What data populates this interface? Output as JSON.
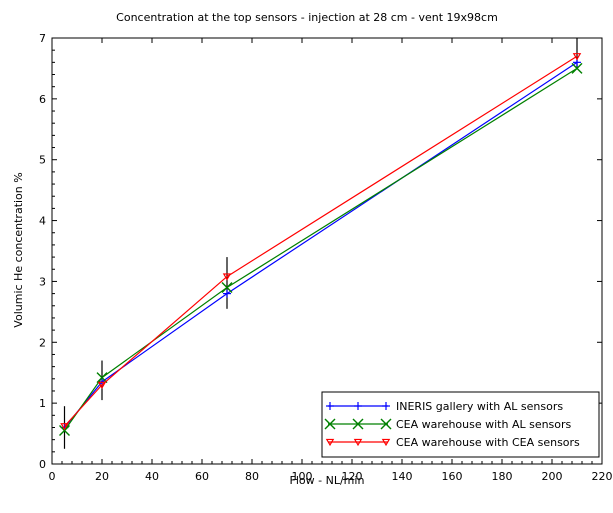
{
  "chart_data": {
    "type": "line",
    "title": "Concentration at the top sensors - injection at 28 cm - vent 19x98cm",
    "xlabel": "Flow - NL/min",
    "ylabel": "Volumic He concentration %",
    "xlim": [
      0,
      220
    ],
    "ylim": [
      0,
      7
    ],
    "xticks": [
      0,
      20,
      40,
      60,
      80,
      100,
      120,
      140,
      160,
      180,
      200,
      220
    ],
    "yticks": [
      0,
      1,
      2,
      3,
      4,
      5,
      6,
      7
    ],
    "grid": false,
    "legend_position": "bottom-right",
    "series": [
      {
        "name": "INERIS gallery with AL sensors",
        "color": "#0000ff",
        "marker": "plus",
        "x": [
          5,
          20,
          70,
          210
        ],
        "y": [
          0.6,
          1.35,
          2.8,
          6.6
        ]
      },
      {
        "name": "CEA warehouse with AL sensors",
        "color": "#008000",
        "marker": "x",
        "x": [
          5,
          20,
          70,
          210
        ],
        "y": [
          0.55,
          1.42,
          2.9,
          6.5
        ]
      },
      {
        "name": "CEA warehouse with CEA sensors",
        "color": "#ff0000",
        "marker": "triangle-down",
        "x": [
          5,
          20,
          70,
          210
        ],
        "y": [
          0.62,
          1.3,
          3.08,
          6.7
        ]
      }
    ],
    "error_bars": {
      "color": "#000000",
      "x": [
        5,
        20,
        70,
        210
      ],
      "low": [
        0.25,
        1.05,
        2.55,
        6.5
      ],
      "high": [
        0.95,
        1.7,
        3.4,
        7.0
      ]
    }
  }
}
